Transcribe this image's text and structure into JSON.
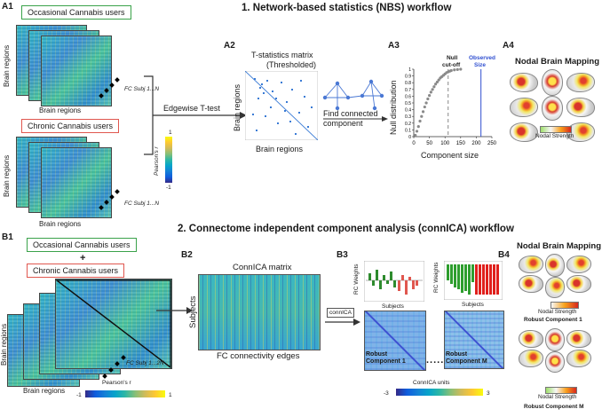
{
  "sections": {
    "nbs_title": "1. Network-based statistics (NBS) workflow",
    "connica_title": "2. Connectome independent component analysis (connICA) workflow"
  },
  "panels": {
    "a1": "A1",
    "a2": "A2",
    "a3": "A3",
    "a4": "A4",
    "b1": "B1",
    "b2": "B2",
    "b3": "B3",
    "b4": "B4"
  },
  "a1": {
    "group_occasional": "Occasional Cannabis users",
    "group_chronic": "Chronic Cannabis users",
    "brain_regions_y": "Brain regions",
    "brain_regions_x": "Brain regions",
    "fc_label_1": "FC Subj 1...N",
    "fc_label_2": "FC Subj 1...N",
    "colorbar_label": "Pearson's r",
    "colorbar_top": "1",
    "colorbar_bottom": "-1",
    "edgewise_test": "Edgewise T-test"
  },
  "a2": {
    "title_line1": "T-statistics matrix",
    "title_line2": "(Thresholded)",
    "ylabel": "Brain regions",
    "xlabel": "Brain regions",
    "find_line1": "Find connected",
    "find_line2": "component"
  },
  "a3": {
    "ylabel": "Null distribution",
    "xlabel": "Component size",
    "null_cutoff_line1": "Null",
    "null_cutoff_line2": "cut-off",
    "observed_line1": "Observed",
    "observed_line2": "Size"
  },
  "a4": {
    "title": "Nodal Brain Mapping",
    "colorbar_label": "Nodal Strength"
  },
  "b1": {
    "group_occasional": "Occasional Cannabis users",
    "plus": "+",
    "group_chronic": "Chronic Cannabis users",
    "brain_regions_y": "Brain regions",
    "brain_regions_x": "Brain regions",
    "fc_label": "FC Subj 1...2N",
    "colorbar_label": "Pearson's r",
    "colorbar_min": "-1",
    "colorbar_max": "1"
  },
  "b2": {
    "title": "ConnICA matrix",
    "ylabel": "Subjects",
    "xlabel": "FC connectivity edges",
    "connica_tag": "connICA"
  },
  "b3": {
    "rc_weights_1": "RC Weights",
    "rc_weights_2": "RC Weights",
    "subjects_1": "Subjects",
    "subjects_2": "Subjects",
    "component_1": "Robust Component 1",
    "component_m": "Robust Component M",
    "colorbar_label": "ConnICA units",
    "colorbar_min": "-3",
    "colorbar_max": "3",
    "ellipsis": "....."
  },
  "b4": {
    "title": "Nodal Brain Mapping",
    "colorbar_1": "Nodal Strength",
    "component_1": "Robust Component 1",
    "colorbar_2": "Nodal Strength",
    "component_m": "Robust Component M"
  },
  "chart_data": {
    "type": "line",
    "title": "",
    "xlabel": "Component size",
    "ylabel": "Null distribution",
    "xlim": [
      0,
      250
    ],
    "ylim": [
      0,
      1
    ],
    "xticks": [
      0,
      50,
      100,
      150,
      200,
      250
    ],
    "yticks": [
      0,
      0.1,
      0.2,
      0.3,
      0.4,
      0.5,
      0.6,
      0.7,
      0.8,
      0.9,
      1
    ],
    "series": [
      {
        "name": "Null distribution",
        "x": [
          5,
          10,
          15,
          20,
          25,
          30,
          35,
          40,
          45,
          50,
          55,
          60,
          65,
          70,
          75,
          80,
          85,
          90,
          95,
          100,
          105,
          110,
          115,
          120,
          130,
          140,
          150
        ],
        "y": [
          0.02,
          0.08,
          0.15,
          0.23,
          0.3,
          0.37,
          0.44,
          0.5,
          0.56,
          0.61,
          0.66,
          0.7,
          0.74,
          0.78,
          0.81,
          0.84,
          0.87,
          0.89,
          0.91,
          0.93,
          0.95,
          0.96,
          0.97,
          0.98,
          0.99,
          0.995,
          1.0
        ]
      }
    ],
    "null_cutoff_x": 110,
    "observed_size_x": 215
  }
}
